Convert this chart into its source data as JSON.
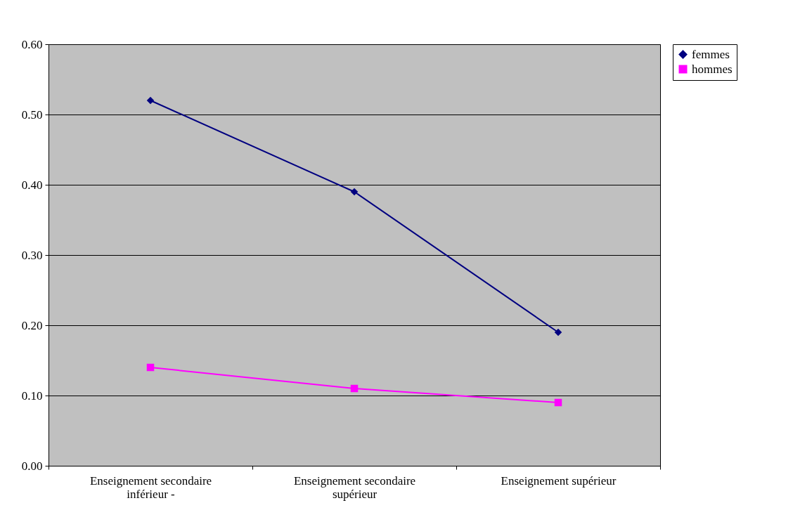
{
  "chart_data": {
    "type": "line",
    "categories": [
      "Enseignement secondaire inférieur -",
      "Enseignement secondaire supérieur",
      "Enseignement supérieur"
    ],
    "series": [
      {
        "name": "femmes",
        "color": "#000080",
        "marker": "diamond",
        "values": [
          0.52,
          0.39,
          0.19
        ]
      },
      {
        "name": "hommes",
        "color": "#ff00ff",
        "marker": "square",
        "values": [
          0.14,
          0.11,
          0.09
        ]
      }
    ],
    "ylim": [
      0,
      0.6
    ],
    "yticks": [
      {
        "value": 0,
        "label": "0.00"
      },
      {
        "value": 0.1,
        "label": "0.10"
      },
      {
        "value": 0.2,
        "label": "0.20"
      },
      {
        "value": 0.3,
        "label": "0.30"
      },
      {
        "value": 0.4,
        "label": "0.40"
      },
      {
        "value": 0.5,
        "label": "0.50"
      },
      {
        "value": 0.6,
        "label": "0.60"
      }
    ],
    "grid": "y",
    "legend": "right",
    "line_style": "solid"
  }
}
